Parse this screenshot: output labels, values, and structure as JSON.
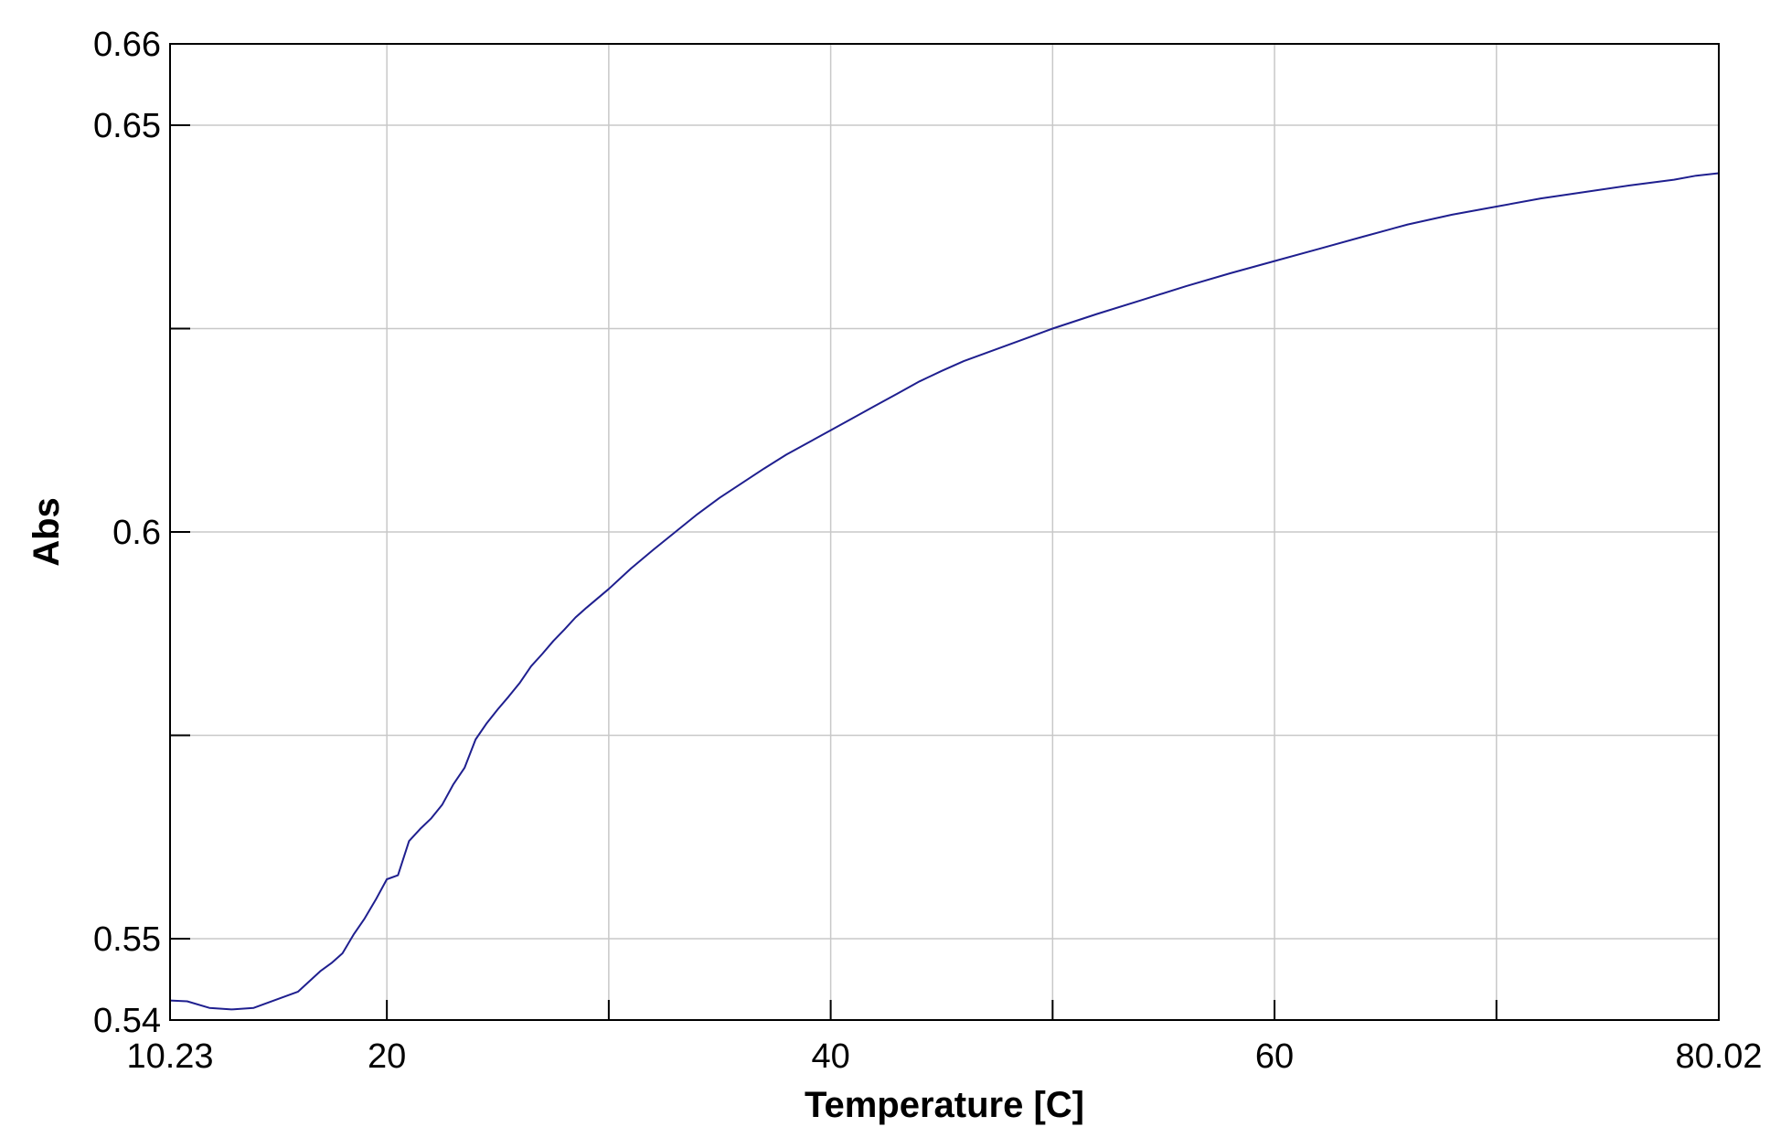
{
  "chart_data": {
    "type": "line",
    "title": "",
    "xlabel": "Temperature [C]",
    "ylabel": "Abs",
    "xlim": [
      10.23,
      80.02
    ],
    "ylim": [
      0.54,
      0.66
    ],
    "x_ticks": [
      {
        "value": 10.23,
        "label": "10.23"
      },
      {
        "value": 20,
        "label": "20"
      },
      {
        "value": 40,
        "label": "40"
      },
      {
        "value": 60,
        "label": "60"
      },
      {
        "value": 80.02,
        "label": "80.02"
      }
    ],
    "y_ticks": [
      {
        "value": 0.54,
        "label": "0.54"
      },
      {
        "value": 0.55,
        "label": "0.55"
      },
      {
        "value": 0.6,
        "label": "0.6"
      },
      {
        "value": 0.65,
        "label": "0.65"
      },
      {
        "value": 0.66,
        "label": "0.66"
      }
    ],
    "x_grid": [
      30,
      50,
      70
    ],
    "y_grid": [
      0.575,
      0.625
    ],
    "grid": true,
    "legend": "none",
    "line_color": "#1f1f8f",
    "frame_color": "#000000",
    "grid_color": "#c8c8c8",
    "series": [
      {
        "x": [
          10.23,
          11,
          12,
          13,
          14,
          15,
          16,
          17,
          17.5,
          18,
          18.5,
          19,
          19.5,
          20,
          20.5,
          21,
          21.5,
          22,
          22.5,
          23,
          23.5,
          24,
          24.5,
          25,
          25.5,
          26,
          26.5,
          27,
          27.5,
          28,
          28.5,
          29,
          30,
          31,
          32,
          33,
          34,
          35,
          36,
          37,
          38,
          39,
          40,
          41,
          42,
          43,
          44,
          45,
          46,
          47,
          48,
          49,
          50,
          52,
          54,
          56,
          58,
          60,
          62,
          64,
          66,
          68,
          70,
          72,
          74,
          76,
          78,
          79,
          80.02
        ],
        "y": [
          0.5424,
          0.5423,
          0.5415,
          0.5413,
          0.5415,
          0.5425,
          0.5435,
          0.546,
          0.547,
          0.5482,
          0.5505,
          0.5525,
          0.5548,
          0.5573,
          0.5578,
          0.562,
          0.5635,
          0.5648,
          0.5665,
          0.569,
          0.571,
          0.5745,
          0.5765,
          0.5782,
          0.5798,
          0.5815,
          0.5835,
          0.585,
          0.5866,
          0.588,
          0.5895,
          0.5907,
          0.593,
          0.5955,
          0.5978,
          0.6,
          0.6022,
          0.6042,
          0.606,
          0.6078,
          0.6095,
          0.611,
          0.6125,
          0.614,
          0.6155,
          0.617,
          0.6185,
          0.6198,
          0.621,
          0.622,
          0.623,
          0.624,
          0.625,
          0.6268,
          0.6285,
          0.6302,
          0.6318,
          0.6333,
          0.6348,
          0.6363,
          0.6378,
          0.639,
          0.64,
          0.641,
          0.6418,
          0.6426,
          0.6433,
          0.6438,
          0.6441
        ]
      }
    ]
  }
}
